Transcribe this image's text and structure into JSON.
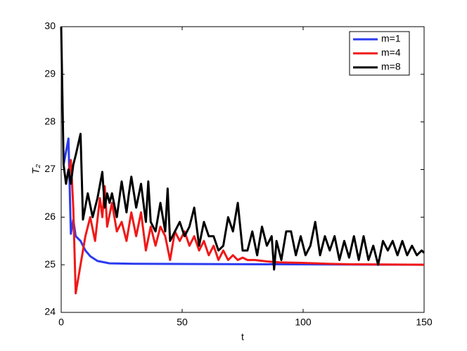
{
  "chart_data": {
    "type": "line",
    "xlabel": "t",
    "ylabel": "T₂",
    "xlim": [
      0,
      150
    ],
    "xticks": [
      0,
      50,
      100,
      150
    ],
    "ylim": [
      24,
      30
    ],
    "yticks": [
      24,
      25,
      26,
      27,
      28,
      29,
      30
    ],
    "grid": false,
    "legend": "top-right",
    "series": [
      {
        "name": "m=1",
        "color": "#2b3bf0",
        "x": [
          1,
          3,
          4,
          5,
          6,
          8,
          10,
          12,
          15,
          20,
          30,
          150
        ],
        "values": [
          27.1,
          27.65,
          25.65,
          25.95,
          25.6,
          25.5,
          25.3,
          25.18,
          25.08,
          25.03,
          25.02,
          25.0
        ]
      },
      {
        "name": "m=4",
        "color": "#f01818",
        "x": [
          3,
          4,
          5,
          6,
          8,
          10,
          12,
          14,
          16,
          17,
          18,
          19,
          21,
          23,
          25,
          27,
          29,
          31,
          33,
          35,
          37,
          39,
          41,
          43,
          45,
          47,
          49,
          51,
          53,
          55,
          57,
          59,
          61,
          63,
          65,
          67,
          69,
          71,
          73,
          75,
          77,
          80,
          85,
          90,
          100,
          110,
          120,
          150
        ],
        "values": [
          26.9,
          27.2,
          26.2,
          24.4,
          25.0,
          25.6,
          26.0,
          25.5,
          26.4,
          26.0,
          26.65,
          25.8,
          26.3,
          25.7,
          25.9,
          25.5,
          26.1,
          25.6,
          26.1,
          25.3,
          25.8,
          25.4,
          25.8,
          25.6,
          25.1,
          25.7,
          25.5,
          25.7,
          25.4,
          25.6,
          25.3,
          25.5,
          25.2,
          25.4,
          25.1,
          25.3,
          25.1,
          25.2,
          25.1,
          25.15,
          25.1,
          25.1,
          25.07,
          25.05,
          25.04,
          25.02,
          25.01,
          25.0
        ]
      },
      {
        "name": "m=8",
        "color": "#000000",
        "x": [
          0,
          1,
          2,
          3,
          4,
          5,
          6,
          8,
          9,
          11,
          13,
          15,
          17,
          18,
          19,
          20,
          21,
          23,
          25,
          27,
          28,
          29,
          31,
          33,
          35,
          36,
          37,
          39,
          41,
          43,
          44,
          45,
          47,
          49,
          51,
          53,
          55,
          57,
          59,
          61,
          63,
          65,
          67,
          69,
          71,
          73,
          75,
          77,
          79,
          81,
          83,
          85,
          87,
          88,
          89,
          91,
          93,
          95,
          97,
          99,
          101,
          103,
          105,
          107,
          109,
          111,
          113,
          115,
          117,
          119,
          121,
          123,
          125,
          127,
          129,
          131,
          133,
          135,
          137,
          139,
          141,
          143,
          145,
          147,
          149,
          150
        ],
        "values": [
          30,
          27.1,
          26.7,
          27.0,
          26.7,
          27.1,
          27.3,
          27.75,
          25.95,
          26.5,
          26.0,
          26.4,
          26.95,
          26.2,
          26.5,
          26.3,
          26.5,
          26.0,
          26.75,
          26.1,
          26.5,
          26.85,
          26.2,
          26.7,
          25.9,
          26.75,
          25.9,
          25.7,
          26.3,
          25.7,
          26.6,
          25.5,
          25.7,
          25.9,
          25.6,
          25.8,
          26.2,
          25.4,
          25.9,
          25.6,
          25.6,
          25.3,
          25.4,
          26.0,
          25.7,
          26.3,
          25.3,
          25.3,
          25.7,
          25.2,
          25.8,
          25.4,
          25.6,
          24.9,
          25.5,
          25.1,
          25.7,
          25.7,
          25.2,
          25.6,
          25.2,
          25.4,
          25.9,
          25.2,
          25.6,
          25.3,
          25.6,
          25.1,
          25.5,
          25.15,
          25.6,
          25.1,
          25.6,
          25.1,
          25.4,
          25.0,
          25.5,
          25.3,
          25.5,
          25.2,
          25.5,
          25.2,
          25.4,
          25.2,
          25.3,
          25.25
        ]
      }
    ]
  }
}
